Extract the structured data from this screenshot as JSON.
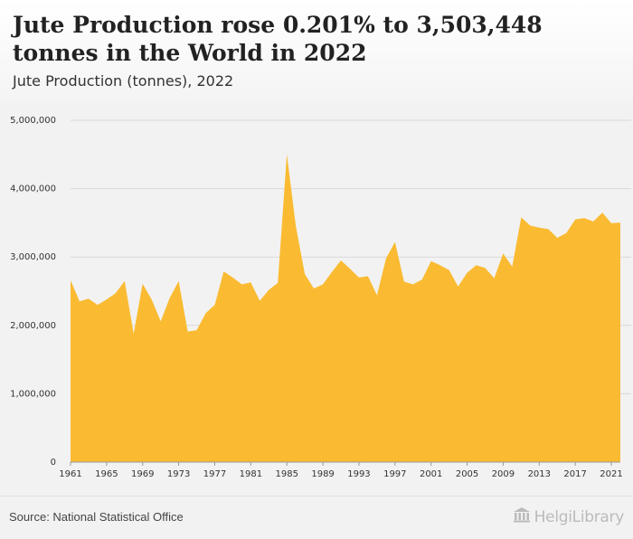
{
  "header": {
    "title": "Jute Production rose 0.201% to 3,503,448 tonnes in the World in 2022",
    "subtitle": "Jute Production (tonnes), 2022"
  },
  "footer": {
    "source": "Source: National Statistical Office",
    "brand": "HelgiLibrary"
  },
  "colors": {
    "area": "#fabb32",
    "grid": "#d8d8d8",
    "background": "#f2f2f2"
  },
  "icons": {
    "logo": "library-building-icon"
  },
  "chart_data": {
    "type": "area",
    "title": "Jute Production (tonnes), 2022",
    "xlabel": "",
    "ylabel": "",
    "ylim": [
      0,
      5000000
    ],
    "yticks": [
      0,
      1000000,
      2000000,
      3000000,
      4000000,
      5000000
    ],
    "ytick_labels": [
      "0",
      "1,000,000",
      "2,000,000",
      "3,000,000",
      "4,000,000",
      "5,000,000"
    ],
    "xticks": [
      1961,
      1965,
      1969,
      1973,
      1977,
      1981,
      1985,
      1989,
      1993,
      1997,
      2001,
      2005,
      2009,
      2013,
      2017,
      2021
    ],
    "grid": true,
    "legend": "none",
    "series": [
      {
        "x": [
          1961,
          1962,
          1963,
          1964,
          1965,
          1966,
          1967,
          1968,
          1969,
          1970,
          1971,
          1972,
          1973,
          1974,
          1975,
          1976,
          1977,
          1978,
          1979,
          1980,
          1981,
          1982,
          1983,
          1984,
          1985,
          1986,
          1987,
          1988,
          1989,
          1990,
          1991,
          1992,
          1993,
          1994,
          1995,
          1996,
          1997,
          1998,
          1999,
          2000,
          2001,
          2002,
          2003,
          2004,
          2005,
          2006,
          2007,
          2008,
          2009,
          2010,
          2011,
          2012,
          2013,
          2014,
          2015,
          2016,
          2017,
          2018,
          2019,
          2020,
          2021,
          2022
        ],
        "values": [
          2660000,
          2350000,
          2390000,
          2300000,
          2380000,
          2470000,
          2650000,
          1880000,
          2610000,
          2380000,
          2060000,
          2400000,
          2650000,
          1910000,
          1930000,
          2180000,
          2300000,
          2790000,
          2700000,
          2600000,
          2630000,
          2360000,
          2520000,
          2620000,
          4500000,
          3450000,
          2750000,
          2540000,
          2600000,
          2780000,
          2950000,
          2830000,
          2700000,
          2720000,
          2440000,
          2980000,
          3220000,
          2640000,
          2600000,
          2670000,
          2940000,
          2880000,
          2810000,
          2570000,
          2770000,
          2880000,
          2840000,
          2690000,
          3050000,
          2860000,
          3580000,
          3460000,
          3430000,
          3410000,
          3280000,
          3350000,
          3550000,
          3570000,
          3520000,
          3650000,
          3496400,
          3503448
        ]
      }
    ]
  }
}
